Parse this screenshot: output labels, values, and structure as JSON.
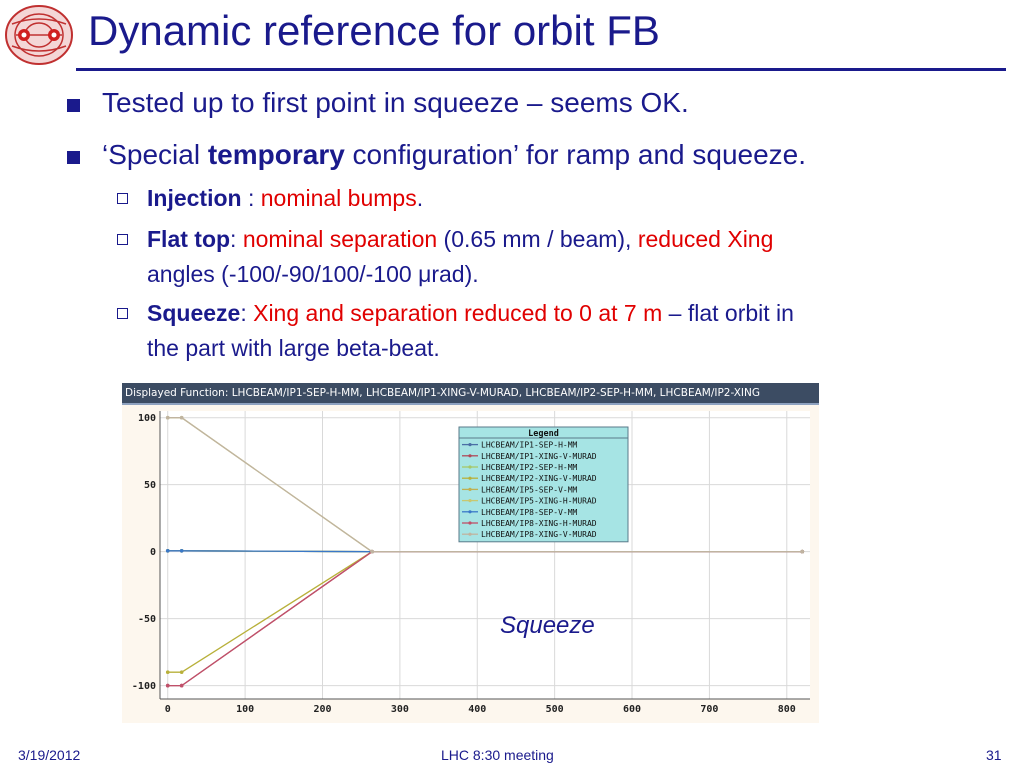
{
  "title": "Dynamic reference for orbit FB",
  "bullets": [
    "Tested up to first point in squeeze – seems OK.",
    {
      "pre": "‘Special ",
      "bold": "temporary",
      "post": " configuration’ for ramp and squeeze."
    }
  ],
  "subitems": [
    {
      "head": "Injection",
      "sep": " : ",
      "red": "nominal bumps",
      "tail": "."
    },
    {
      "head": "Flat top",
      "sep": ": ",
      "red1": "nominal separation",
      "mid": " (0.65 mm / beam), ",
      "red2": "reduced Xing",
      "line2": "angles (-100/-90/100/-100 μrad)."
    },
    {
      "head": "Squeeze",
      "sep": ": ",
      "red": "Xing and separation reduced to 0 at 7 m",
      "tail": " – flat orbit in",
      "line2": "the part with large beta-beat."
    }
  ],
  "chart_header": "Displayed Function: LHCBEAM/IP1-SEP-H-MM, LHCBEAM/IP1-XING-V-MURAD, LHCBEAM/IP2-SEP-H-MM, LHCBEAM/IP2-XING",
  "chart_annotation": "Squeeze",
  "footer": {
    "date": "3/19/2012",
    "center": "LHC 8:30 meeting",
    "page": "31"
  },
  "chart_data": {
    "type": "line",
    "xlim": [
      -10,
      830
    ],
    "ylim": [
      -110,
      105
    ],
    "xticks": [
      0,
      100,
      200,
      300,
      400,
      500,
      600,
      700,
      800
    ],
    "yticks": [
      100,
      50,
      0,
      -50,
      -100
    ],
    "grid": true,
    "legend_title": "Legend",
    "legend_position": "top-right",
    "series": [
      {
        "name": "LHCBEAM/IP1-SEP-H-MM",
        "color": "#4a6fa5",
        "points": [
          [
            0,
            0.65
          ],
          [
            18,
            0.65
          ],
          [
            264,
            0
          ],
          [
            820,
            0
          ]
        ]
      },
      {
        "name": "LHCBEAM/IP1-XING-V-MURAD",
        "color": "#b04a5a",
        "points": [
          [
            0,
            -100
          ],
          [
            18,
            -100
          ],
          [
            264,
            0
          ],
          [
            820,
            0
          ]
        ]
      },
      {
        "name": "LHCBEAM/IP2-SEP-H-MM",
        "color": "#a6c86a",
        "points": [
          [
            0,
            0.65
          ],
          [
            18,
            0.65
          ],
          [
            264,
            0
          ],
          [
            820,
            0
          ]
        ]
      },
      {
        "name": "LHCBEAM/IP2-XING-V-MURAD",
        "color": "#b8b03a",
        "points": [
          [
            0,
            -90
          ],
          [
            18,
            -90
          ],
          [
            264,
            0
          ],
          [
            820,
            0
          ]
        ]
      },
      {
        "name": "LHCBEAM/IP5-SEP-V-MM",
        "color": "#c0b050",
        "points": [
          [
            0,
            0.65
          ],
          [
            18,
            0.65
          ],
          [
            264,
            0
          ],
          [
            820,
            0
          ]
        ]
      },
      {
        "name": "LHCBEAM/IP5-XING-H-MURAD",
        "color": "#c8c870",
        "points": [
          [
            0,
            100
          ],
          [
            18,
            100
          ],
          [
            264,
            0
          ],
          [
            820,
            0
          ]
        ]
      },
      {
        "name": "LHCBEAM/IP8-SEP-V-MM",
        "color": "#3a78c8",
        "points": [
          [
            0,
            0.65
          ],
          [
            18,
            0.65
          ],
          [
            264,
            0
          ],
          [
            820,
            0
          ]
        ]
      },
      {
        "name": "LHCBEAM/IP8-XING-H-MURAD",
        "color": "#c0506a",
        "points": [
          [
            0,
            -100
          ],
          [
            18,
            -100
          ],
          [
            264,
            0
          ],
          [
            820,
            0
          ]
        ]
      },
      {
        "name": "LHCBEAM/IP8-XING-V-MURAD",
        "color": "#c0b4a0",
        "points": [
          [
            0,
            100
          ],
          [
            18,
            100
          ],
          [
            264,
            0
          ],
          [
            820,
            0
          ]
        ]
      }
    ]
  }
}
